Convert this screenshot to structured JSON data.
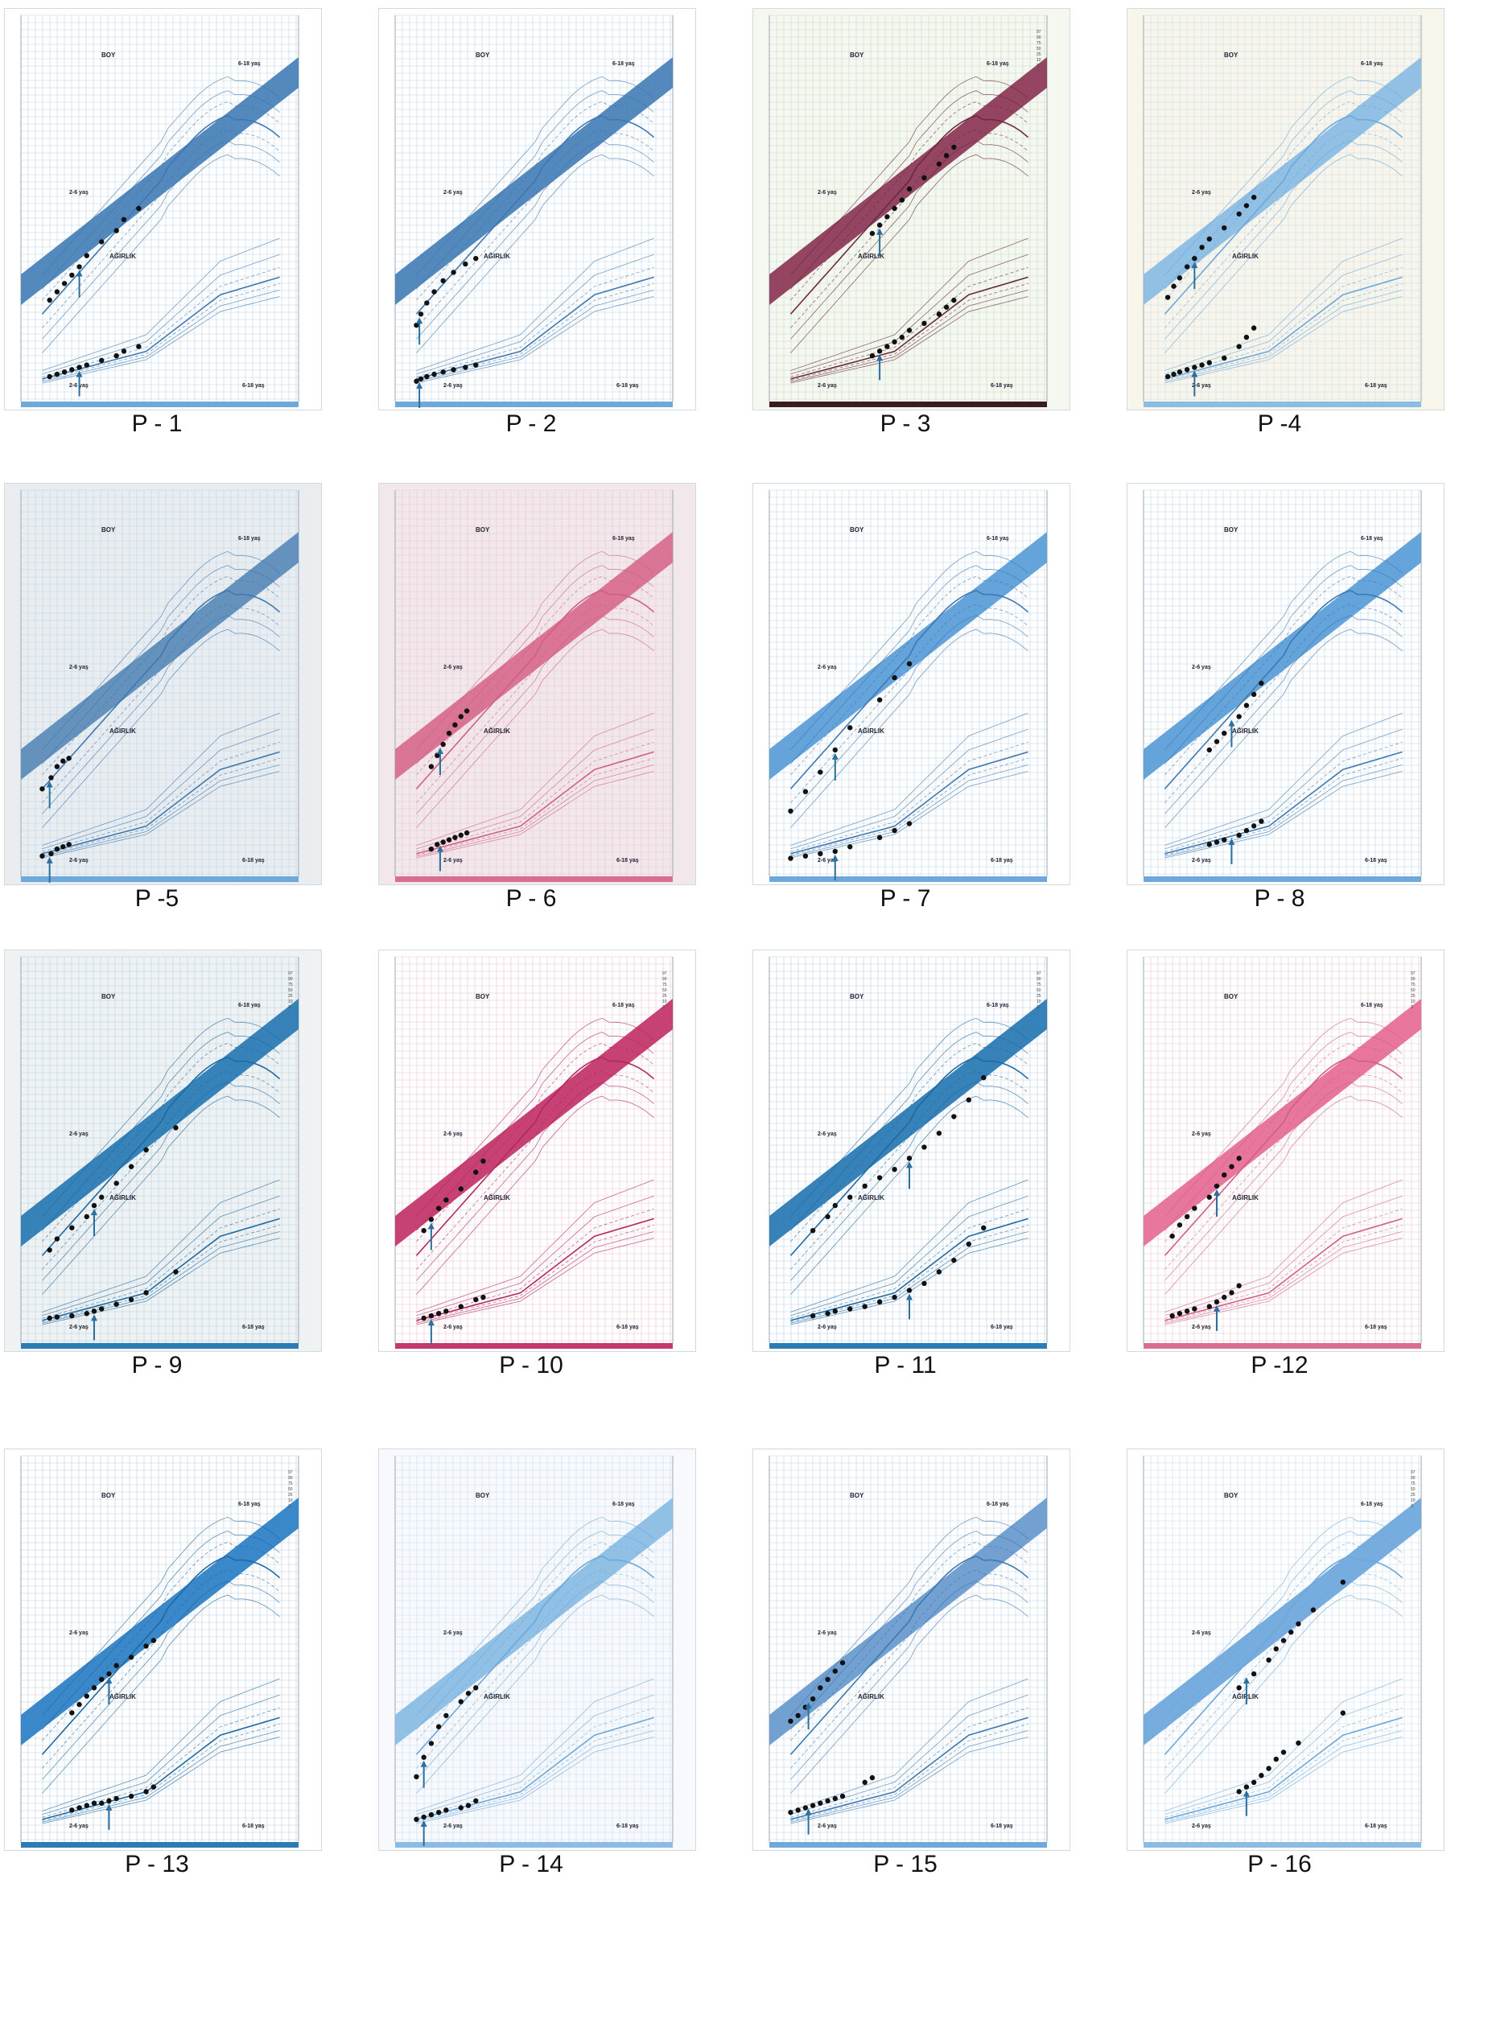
{
  "texts": {
    "boy": "BOY",
    "agirlik": "AĞIRLIK",
    "range_old": "6-18 yaş",
    "range_young": "2-6 yaş"
  },
  "panels": [
    {
      "label": "P - 1",
      "theme": "blue",
      "bg": "#ffffff",
      "band": "#4a83b8",
      "pct_labels": false,
      "height": [
        [
          2.5,
          91
        ],
        [
          3,
          94
        ],
        [
          3.5,
          97
        ],
        [
          4,
          100
        ],
        [
          4.5,
          103
        ],
        [
          5,
          107
        ],
        [
          6,
          112
        ],
        [
          7,
          116
        ],
        [
          7.5,
          120
        ],
        [
          8.5,
          124
        ]
      ],
      "weight": [
        [
          2.5,
          13
        ],
        [
          3,
          14
        ],
        [
          3.5,
          15
        ],
        [
          4,
          16
        ],
        [
          4.5,
          17
        ],
        [
          5,
          18
        ],
        [
          6,
          20
        ],
        [
          7,
          22
        ],
        [
          7.5,
          24
        ],
        [
          8.5,
          26
        ]
      ],
      "arrow_age": 4.5
    },
    {
      "label": "P - 2",
      "theme": "blue",
      "bg": "#ffffff",
      "band": "#4a83b8",
      "pct_labels": false,
      "height": [
        [
          2,
          82
        ],
        [
          2.3,
          86
        ],
        [
          2.7,
          90
        ],
        [
          3.2,
          94
        ],
        [
          3.8,
          98
        ],
        [
          4.5,
          101
        ],
        [
          5.3,
          104
        ],
        [
          6,
          106
        ]
      ],
      "weight": [
        [
          2,
          11
        ],
        [
          2.3,
          12
        ],
        [
          2.7,
          13
        ],
        [
          3.2,
          14
        ],
        [
          3.8,
          15
        ],
        [
          4.5,
          16
        ],
        [
          5.3,
          17
        ],
        [
          6,
          18
        ]
      ],
      "arrow_age": 2.2
    },
    {
      "label": "P - 3",
      "theme": "maroon",
      "bg": "#f4f8f1",
      "band": "#8e3b58",
      "pct_labels": true,
      "height": [
        [
          7.5,
          115
        ],
        [
          8,
          118
        ],
        [
          8.5,
          121
        ],
        [
          9,
          124
        ],
        [
          9.5,
          127
        ],
        [
          10,
          131
        ],
        [
          11,
          135
        ],
        [
          12,
          140
        ],
        [
          12.5,
          143
        ],
        [
          13,
          146
        ]
      ],
      "weight": [
        [
          7.5,
          22
        ],
        [
          8,
          24
        ],
        [
          8.5,
          26
        ],
        [
          9,
          28
        ],
        [
          9.5,
          30
        ],
        [
          10,
          33
        ],
        [
          11,
          36
        ],
        [
          12,
          40
        ],
        [
          12.5,
          43
        ],
        [
          13,
          46
        ]
      ],
      "arrow_age": 8
    },
    {
      "label": "P -4",
      "theme": "lightblue",
      "bg": "#f8f5ea",
      "band": "#8bbde4",
      "pct_labels": false,
      "height": [
        [
          2.2,
          92
        ],
        [
          2.6,
          96
        ],
        [
          3,
          99
        ],
        [
          3.5,
          103
        ],
        [
          4,
          106
        ],
        [
          4.5,
          110
        ],
        [
          5,
          113
        ],
        [
          6,
          117
        ],
        [
          7,
          122
        ],
        [
          7.5,
          125
        ],
        [
          8,
          128
        ]
      ],
      "weight": [
        [
          2.2,
          13
        ],
        [
          2.6,
          14
        ],
        [
          3,
          15
        ],
        [
          3.5,
          16
        ],
        [
          4,
          17
        ],
        [
          4.5,
          18
        ],
        [
          5,
          19
        ],
        [
          6,
          21
        ],
        [
          7,
          26
        ],
        [
          7.5,
          30
        ],
        [
          8,
          34
        ]
      ],
      "arrow_age": 4
    },
    {
      "label": "P -5",
      "theme": "blue",
      "bg": "#e9edf0",
      "band": "#5d8db8",
      "pct_labels": false,
      "height": [
        [
          2,
          86
        ],
        [
          2.6,
          90
        ],
        [
          3,
          94
        ],
        [
          3.4,
          96
        ],
        [
          3.8,
          97
        ]
      ],
      "weight": [
        [
          2,
          11
        ],
        [
          2.6,
          12
        ],
        [
          3,
          14
        ],
        [
          3.4,
          15
        ],
        [
          3.8,
          16
        ]
      ],
      "arrow_age": 2.5
    },
    {
      "label": "P - 6",
      "theme": "pink",
      "bg": "#f2e8ec",
      "band": "#d86f90",
      "pct_labels": false,
      "height": [
        [
          3,
          94
        ],
        [
          3.4,
          98
        ],
        [
          3.8,
          102
        ],
        [
          4.2,
          106
        ],
        [
          4.6,
          109
        ],
        [
          5,
          112
        ],
        [
          5.4,
          114
        ]
      ],
      "weight": [
        [
          3,
          14
        ],
        [
          3.4,
          16
        ],
        [
          3.8,
          17
        ],
        [
          4.2,
          18
        ],
        [
          4.6,
          19
        ],
        [
          5,
          20
        ],
        [
          5.4,
          21
        ]
      ],
      "arrow_age": 3.6
    },
    {
      "label": "P - 7",
      "theme": "blue",
      "bg": "#ffffff",
      "band": "#5d9fd9",
      "pct_labels": false,
      "height": [
        [
          2,
          78
        ],
        [
          3,
          85
        ],
        [
          4,
          92
        ],
        [
          5,
          100
        ],
        [
          6,
          108
        ],
        [
          8,
          118
        ],
        [
          9,
          126
        ],
        [
          10,
          131
        ]
      ],
      "weight": [
        [
          2,
          10
        ],
        [
          3,
          11
        ],
        [
          4,
          12
        ],
        [
          5,
          13
        ],
        [
          6,
          15
        ],
        [
          8,
          19
        ],
        [
          9,
          22
        ],
        [
          10,
          25
        ]
      ],
      "arrow_age": 5
    },
    {
      "label": "P - 8",
      "theme": "blue",
      "bg": "#ffffff",
      "band": "#5d9fd9",
      "pct_labels": false,
      "height": [
        [
          5,
          100
        ],
        [
          5.5,
          103
        ],
        [
          6,
          106
        ],
        [
          7,
          112
        ],
        [
          7.5,
          116
        ],
        [
          8,
          120
        ],
        [
          8.5,
          124
        ]
      ],
      "weight": [
        [
          5,
          16
        ],
        [
          5.5,
          17
        ],
        [
          6,
          18
        ],
        [
          7,
          20
        ],
        [
          7.5,
          22
        ],
        [
          8,
          24
        ],
        [
          8.5,
          26
        ]
      ],
      "arrow_age": 6.5
    },
    {
      "label": "P - 9",
      "theme": "teal",
      "bg": "#eef2f2",
      "band": "#2b7bb5",
      "pct_labels": true,
      "height": [
        [
          2.5,
          88
        ],
        [
          3,
          92
        ],
        [
          4,
          96
        ],
        [
          5,
          100
        ],
        [
          5.5,
          104
        ],
        [
          6,
          107
        ],
        [
          7,
          112
        ],
        [
          8,
          118
        ],
        [
          9,
          124
        ],
        [
          11,
          132
        ]
      ],
      "weight": [
        [
          2.5,
          13
        ],
        [
          3,
          13.5
        ],
        [
          4,
          14
        ],
        [
          5,
          15
        ],
        [
          5.5,
          16
        ],
        [
          6,
          17
        ],
        [
          7,
          19
        ],
        [
          8,
          21
        ],
        [
          9,
          24
        ],
        [
          11,
          33
        ]
      ],
      "arrow_age": 5.5
    },
    {
      "label": "P - 10",
      "theme": "magenta",
      "bg": "#ffffff",
      "band": "#c4386d",
      "pct_labels": true,
      "height": [
        [
          2.5,
          95
        ],
        [
          3,
          99
        ],
        [
          3.5,
          103
        ],
        [
          4,
          106
        ],
        [
          5,
          110
        ],
        [
          6,
          116
        ],
        [
          6.5,
          120
        ]
      ],
      "weight": [
        [
          2.5,
          13
        ],
        [
          3,
          14
        ],
        [
          3.5,
          15
        ],
        [
          4,
          16
        ],
        [
          5,
          18
        ],
        [
          6,
          21
        ],
        [
          6.5,
          22
        ]
      ],
      "arrow_age": 3
    },
    {
      "label": "P - 11",
      "theme": "teal",
      "bg": "#ffffff",
      "band": "#2b7bb5",
      "pct_labels": true,
      "height": [
        [
          3.5,
          95
        ],
        [
          4.5,
          100
        ],
        [
          5,
          104
        ],
        [
          6,
          107
        ],
        [
          7,
          111
        ],
        [
          8,
          114
        ],
        [
          9,
          117
        ],
        [
          10,
          121
        ],
        [
          11,
          125
        ],
        [
          12,
          130
        ],
        [
          13,
          136
        ],
        [
          14,
          142
        ],
        [
          15,
          150
        ]
      ],
      "weight": [
        [
          3.5,
          14
        ],
        [
          4.5,
          15
        ],
        [
          5,
          16
        ],
        [
          6,
          17
        ],
        [
          7,
          18
        ],
        [
          8,
          20
        ],
        [
          9,
          22
        ],
        [
          10,
          25
        ],
        [
          11,
          28
        ],
        [
          12,
          33
        ],
        [
          13,
          38
        ],
        [
          14,
          45
        ],
        [
          15,
          52
        ]
      ],
      "arrow_age": 10
    },
    {
      "label": "P -12",
      "theme": "pink",
      "bg": "#ffffff",
      "band": "#e77098",
      "pct_labels": true,
      "height": [
        [
          2.5,
          93
        ],
        [
          3,
          97
        ],
        [
          3.5,
          100
        ],
        [
          4,
          103
        ],
        [
          5,
          107
        ],
        [
          5.5,
          111
        ],
        [
          6,
          115
        ],
        [
          6.5,
          118
        ],
        [
          7,
          121
        ]
      ],
      "weight": [
        [
          2.5,
          14
        ],
        [
          3,
          15
        ],
        [
          3.5,
          16
        ],
        [
          4,
          17
        ],
        [
          5,
          18
        ],
        [
          5.5,
          20
        ],
        [
          6,
          22
        ],
        [
          6.5,
          24
        ],
        [
          7,
          27
        ]
      ],
      "arrow_age": 5.5
    },
    {
      "label": "P - 13",
      "theme": "teal",
      "bg": "#ffffff",
      "band": "#2f82c7",
      "pct_labels": true,
      "height": [
        [
          4,
          101
        ],
        [
          4.5,
          104
        ],
        [
          5,
          107
        ],
        [
          5.5,
          110
        ],
        [
          6,
          113
        ],
        [
          6.5,
          115
        ],
        [
          7,
          118
        ],
        [
          8,
          121
        ],
        [
          9,
          125
        ],
        [
          9.5,
          127
        ]
      ],
      "weight": [
        [
          4,
          16
        ],
        [
          4.5,
          17
        ],
        [
          5,
          18
        ],
        [
          5.5,
          19
        ],
        [
          6,
          19
        ],
        [
          6.5,
          20
        ],
        [
          7,
          21
        ],
        [
          8,
          22
        ],
        [
          9,
          24
        ],
        [
          9.5,
          26
        ]
      ],
      "arrow_age": 6.5
    },
    {
      "label": "P - 14",
      "theme": "lightblue",
      "bg": "#f7f9fc",
      "band": "#8bbde4",
      "pct_labels": false,
      "height": [
        [
          2,
          78
        ],
        [
          2.5,
          85
        ],
        [
          3,
          90
        ],
        [
          3.5,
          96
        ],
        [
          4,
          100
        ],
        [
          5,
          105
        ],
        [
          5.5,
          108
        ],
        [
          6,
          110
        ]
      ],
      "weight": [
        [
          2,
          12
        ],
        [
          2.5,
          13
        ],
        [
          3,
          14
        ],
        [
          3.5,
          15
        ],
        [
          4,
          16
        ],
        [
          5,
          17
        ],
        [
          5.5,
          18
        ],
        [
          6,
          20
        ]
      ],
      "arrow_age": 2.5
    },
    {
      "label": "P - 15",
      "theme": "blue",
      "bg": "#ffffff",
      "band": "#6a9bcf",
      "pct_labels": false,
      "height": [
        [
          2,
          98
        ],
        [
          2.5,
          100
        ],
        [
          3,
          103
        ],
        [
          3.5,
          106
        ],
        [
          4,
          110
        ],
        [
          4.5,
          113
        ],
        [
          5,
          116
        ],
        [
          5.5,
          119
        ]
      ],
      "weight": [
        [
          2,
          15
        ],
        [
          2.5,
          16
        ],
        [
          3,
          17
        ],
        [
          3.5,
          18
        ],
        [
          4,
          19
        ],
        [
          4.5,
          20
        ],
        [
          5,
          21
        ],
        [
          5.5,
          22
        ],
        [
          7,
          28
        ],
        [
          7.5,
          30
        ]
      ],
      "arrow_age": 3.2
    },
    {
      "label": "P - 16",
      "theme": "lightblue",
      "bg": "#ffffff",
      "band": "#6fa9dc",
      "pct_labels": true,
      "height": [
        [
          7,
          110
        ],
        [
          8,
          115
        ],
        [
          9,
          120
        ],
        [
          9.5,
          124
        ],
        [
          10,
          127
        ],
        [
          10.5,
          130
        ],
        [
          11,
          133
        ],
        [
          12,
          138
        ],
        [
          14,
          148
        ]
      ],
      "weight": [
        [
          7,
          24
        ],
        [
          7.5,
          26
        ],
        [
          8,
          28
        ],
        [
          8.5,
          31
        ],
        [
          9,
          34
        ],
        [
          9.5,
          38
        ],
        [
          10,
          41
        ],
        [
          11,
          45
        ],
        [
          14,
          58
        ]
      ],
      "arrow_age": 7.5
    }
  ]
}
